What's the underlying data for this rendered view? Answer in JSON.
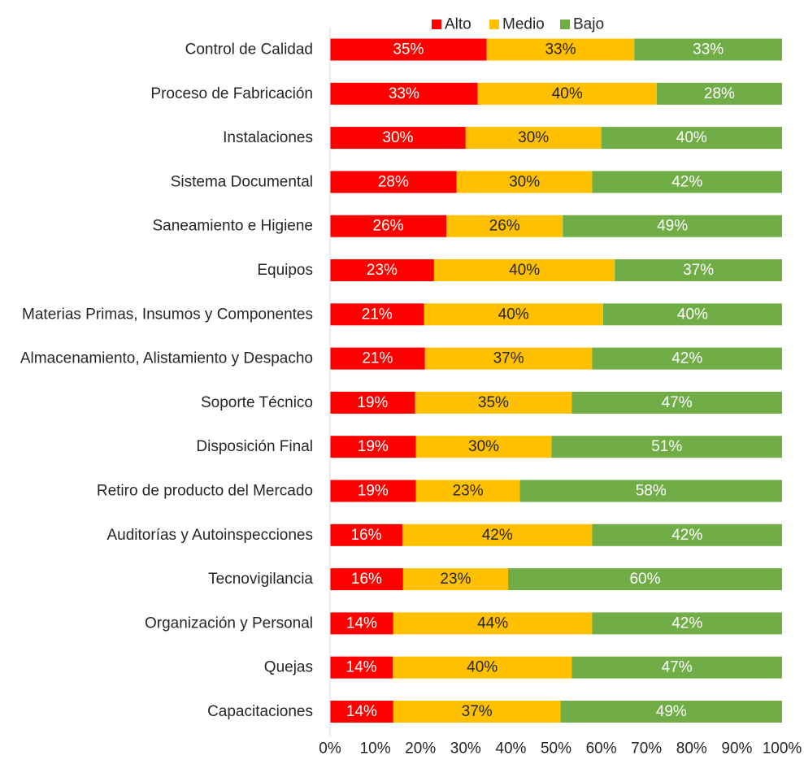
{
  "chart_data": {
    "type": "bar",
    "orientation": "horizontal",
    "stacked": "100%",
    "categories": [
      "Control de Calidad",
      "Proceso de Fabricación",
      "Instalaciones",
      "Sistema Documental",
      "Saneamiento e Higiene",
      "Equipos",
      "Materias Primas, Insumos y Componentes",
      "Almacenamiento, Alistamiento y Despacho",
      "Soporte Técnico",
      "Disposición Final",
      "Retiro de producto del Mercado",
      "Auditorías y Autoinspecciones",
      "Tecnovigilancia",
      "Organización y Personal",
      "Quejas",
      "Capacitaciones"
    ],
    "series": [
      {
        "name": "Alto",
        "color": "#ff0000",
        "label_color": "#ffffff",
        "values": [
          35,
          33,
          30,
          28,
          26,
          23,
          21,
          21,
          19,
          19,
          19,
          16,
          16,
          14,
          14,
          14
        ],
        "labels": [
          "35%",
          "33%",
          "30%",
          "28%",
          "26%",
          "23%",
          "21%",
          "21%",
          "19%",
          "19%",
          "19%",
          "16%",
          "16%",
          "14%",
          "14%",
          "14%"
        ]
      },
      {
        "name": "Medio",
        "color": "#ffc000",
        "label_color": "#262626",
        "values": [
          33,
          40,
          30,
          30,
          26,
          40,
          40,
          37,
          35,
          30,
          23,
          42,
          23,
          44,
          40,
          37
        ],
        "labels": [
          "33%",
          "40%",
          "30%",
          "30%",
          "26%",
          "40%",
          "40%",
          "37%",
          "35%",
          "30%",
          "23%",
          "42%",
          "23%",
          "44%",
          "40%",
          "37%"
        ]
      },
      {
        "name": "Bajo",
        "color": "#70ad47",
        "label_color": "#ffffff",
        "values": [
          33,
          28,
          40,
          42,
          49,
          37,
          40,
          42,
          47,
          51,
          58,
          42,
          60,
          42,
          47,
          49
        ],
        "labels": [
          "33%",
          "28%",
          "40%",
          "42%",
          "49%",
          "37%",
          "40%",
          "42%",
          "47%",
          "51%",
          "58%",
          "42%",
          "60%",
          "42%",
          "47%",
          "49%"
        ]
      }
    ],
    "xlim": [
      0,
      100
    ],
    "xticks": [
      "0%",
      "10%",
      "20%",
      "30%",
      "40%",
      "50%",
      "60%",
      "70%",
      "80%",
      "90%",
      "100%"
    ],
    "grid": false,
    "legend": "top-center"
  }
}
